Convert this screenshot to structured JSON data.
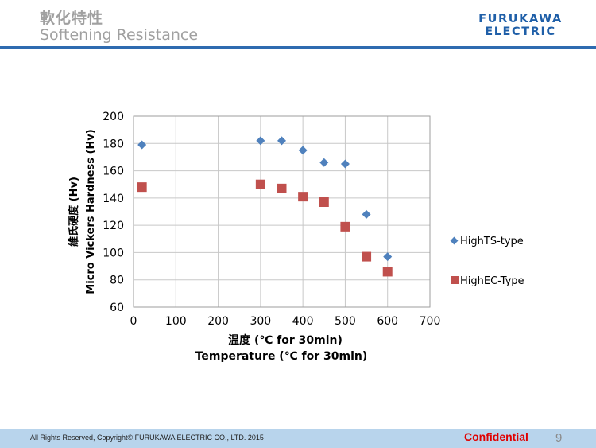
{
  "header": {
    "title_ja": "軟化特性",
    "title_en": "Softening Resistance",
    "logo_line1": "FURUKAWA",
    "logo_line2": "ELECTRIC",
    "accent_color": "#2e6bb0"
  },
  "chart_data": {
    "type": "scatter",
    "xlabel_ja": "温度 (℃ for 30min)",
    "xlabel": "Temperature (℃ for 30min)",
    "ylabel_ja": "維氏硬度 (Hv)",
    "ylabel": "Micro Vickers Hardness (Hv)",
    "xlim": [
      0,
      700
    ],
    "ylim": [
      60,
      200
    ],
    "xticks": [
      0,
      100,
      200,
      300,
      400,
      500,
      600,
      700
    ],
    "yticks": [
      60,
      80,
      100,
      120,
      140,
      160,
      180,
      200
    ],
    "grid": true,
    "legend_position": "right",
    "series": [
      {
        "name": "HighTS-type",
        "marker": "diamond",
        "color": "#4f81bd",
        "x": [
          20,
          300,
          350,
          400,
          450,
          500,
          550,
          600
        ],
        "y": [
          179,
          182,
          182,
          175,
          166,
          165,
          128,
          97
        ]
      },
      {
        "name": "HighEC-Type",
        "marker": "square",
        "color": "#c0504d",
        "x": [
          20,
          300,
          350,
          400,
          450,
          500,
          550,
          600
        ],
        "y": [
          148,
          150,
          147,
          141,
          137,
          119,
          97,
          86
        ]
      }
    ]
  },
  "footer": {
    "copyright": "All Rights Reserved, Copyright© FURUKAWA ELECTRIC CO., LTD. 2015",
    "confidential": "Confidential",
    "page_number": "9"
  }
}
